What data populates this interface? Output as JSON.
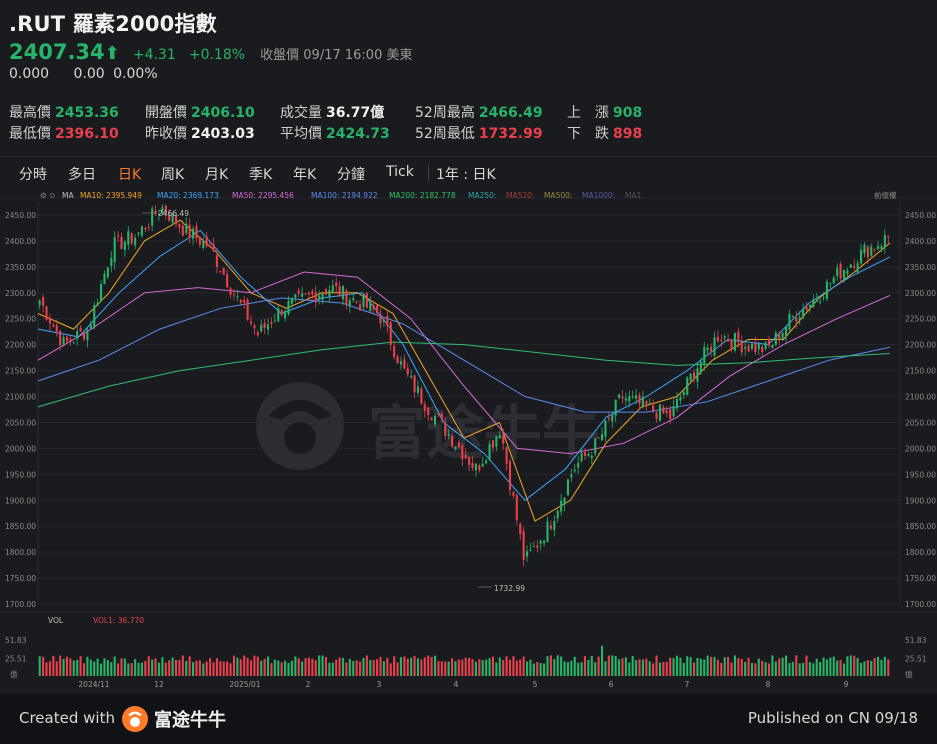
{
  "header": {
    "title": ".RUT 羅素2000指數",
    "price": "2407.34",
    "change": "+4.31",
    "change_pct": "+0.18%",
    "close_note": "收盤價 09/17 16:00 美東",
    "sub_values": [
      "0.000",
      "0.00",
      "0.00%"
    ]
  },
  "stats": [
    {
      "label": "最高價",
      "value": "2453.36",
      "tone": "g"
    },
    {
      "label": "開盤價",
      "value": "2406.10",
      "tone": "g"
    },
    {
      "label": "成交量",
      "value": "36.77億",
      "tone": "w"
    },
    {
      "label": "52周最高",
      "value": "2466.49",
      "tone": "g"
    },
    {
      "label": "上　漲",
      "value": "908",
      "tone": "g"
    },
    {
      "label": "最低價",
      "value": "2396.10",
      "tone": "r"
    },
    {
      "label": "昨收價",
      "value": "2403.03",
      "tone": "w"
    },
    {
      "label": "平均價",
      "value": "2424.73",
      "tone": "g"
    },
    {
      "label": "52周最低",
      "value": "1732.99",
      "tone": "r"
    },
    {
      "label": "下　跌",
      "value": "898",
      "tone": "r"
    }
  ],
  "tabs": [
    "分時",
    "多日",
    "日K",
    "周K",
    "月K",
    "季K",
    "年K",
    "分鐘",
    "Tick",
    "1年 : 日K"
  ],
  "active_tab": "日K",
  "ma_legend": [
    {
      "label": "MA10: 2395.949",
      "color": "#f5a623"
    },
    {
      "label": "MA20: 2369.173",
      "color": "#3ea6ff"
    },
    {
      "label": "MA50: 2295.456",
      "color": "#d86bd8"
    },
    {
      "label": "MA100: 2194.922",
      "color": "#5b8cf0"
    },
    {
      "label": "MA200: 2182.778",
      "color": "#2fbf71"
    },
    {
      "label": "MA250:",
      "color": "#2aa9a9"
    },
    {
      "label": "MA520:",
      "color": "#a04040"
    },
    {
      "label": "MA500:",
      "color": "#9a8a3a"
    },
    {
      "label": "MA1000:",
      "color": "#5a5aa0"
    },
    {
      "label": "MA1",
      "color": "#555555"
    }
  ],
  "ma_prefix": "MA",
  "right_tag": "前復權",
  "vol_legend": {
    "label": "VOL",
    "value": "VOL1: 36.770"
  },
  "vol_axis": [
    "51.83",
    "25.51",
    "億"
  ],
  "colors": {
    "up": "#27b368",
    "down": "#e8414b",
    "accent": "#ff7a29",
    "bg": "#1a1b1f"
  },
  "watermark": "富途牛牛",
  "footer": {
    "created": "Created with",
    "brand": "富途牛牛",
    "published": "Published on CN 09/18"
  },
  "chart_data": {
    "type": "candlestick",
    "ylim": [
      1700,
      2475
    ],
    "y_ticks": [
      1700,
      1750,
      1800,
      1850,
      1900,
      1950,
      2000,
      2050,
      2100,
      2150,
      2200,
      2250,
      2300,
      2350,
      2400,
      2450
    ],
    "x_tick_labels": [
      "2024/11",
      "12",
      "2025/01",
      "2",
      "3",
      "4",
      "5",
      "6",
      "7",
      "8",
      "9"
    ],
    "annotations": [
      {
        "text": "2466.49"
      },
      {
        "text": "1732.99"
      }
    ],
    "close_anchors": [
      2285,
      2200,
      2230,
      2390,
      2410,
      2466,
      2420,
      2390,
      2300,
      2220,
      2270,
      2290,
      2310,
      2285,
      2260,
      2150,
      2080,
      2020,
      1960,
      2040,
      1780,
      1850,
      1960,
      2010,
      2100,
      2080,
      2060,
      2150,
      2220,
      2200,
      2190,
      2250,
      2290,
      2340,
      2380,
      2407
    ],
    "ma_anchors": {
      "MA10": [
        2260,
        2230,
        2300,
        2400,
        2440,
        2380,
        2300,
        2270,
        2300,
        2300,
        2260,
        2140,
        2020,
        2050,
        1860,
        1900,
        2010,
        2080,
        2100,
        2170,
        2210,
        2210,
        2290,
        2340,
        2396
      ],
      "MA20": [
        2230,
        2215,
        2300,
        2370,
        2420,
        2330,
        2260,
        2290,
        2300,
        2200,
        2050,
        1990,
        1900,
        1960,
        2060,
        2100,
        2150,
        2210,
        2200,
        2280,
        2330,
        2369
      ],
      "MA50": [
        2170,
        2230,
        2300,
        2310,
        2300,
        2340,
        2330,
        2250,
        2120,
        2000,
        1990,
        2010,
        2060,
        2140,
        2200,
        2250,
        2295
      ],
      "MA100": [
        2130,
        2170,
        2230,
        2270,
        2290,
        2280,
        2240,
        2170,
        2100,
        2070,
        2070,
        2090,
        2130,
        2170,
        2195
      ],
      "MA200": [
        2080,
        2120,
        2150,
        2170,
        2190,
        2205,
        2200,
        2185,
        2170,
        2160,
        2165,
        2175,
        2183
      ]
    }
  }
}
